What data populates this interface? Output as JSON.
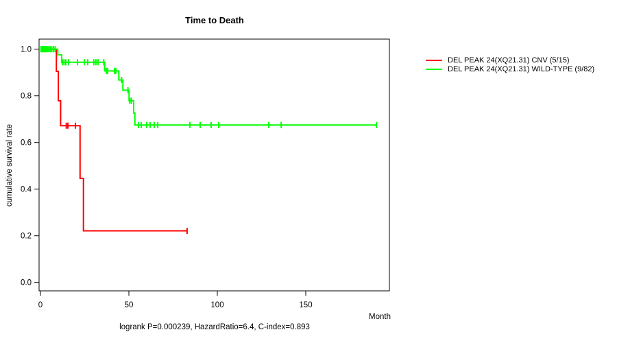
{
  "chart_data": {
    "type": "line",
    "subtype": "kaplan_meier_step",
    "title": "Time to Death",
    "xlabel": "Month",
    "ylabel": "cumulative survival rate",
    "annotation": "logrank P=0.000239, HazardRatio=6.4, C-index=0.893",
    "xlim": [
      0,
      197
    ],
    "ylim": [
      0.0,
      1.0
    ],
    "xticks": [
      0,
      50,
      100,
      150
    ],
    "yticks": [
      0.0,
      0.2,
      0.4,
      0.6,
      0.8,
      1.0
    ],
    "grid": false,
    "legend_position": "right-outside",
    "colors": {
      "cnv": "#ff0000",
      "wild_type": "#00ff00",
      "axis": "#000000"
    },
    "series": [
      {
        "name": "DEL PEAK 24(XQ21.31) CNV (5/15)",
        "color": "#ff0000",
        "start_survival": 1.0,
        "drops": [
          [
            9.0,
            0.905
          ],
          [
            10.1,
            0.779
          ],
          [
            11.4,
            0.672
          ],
          [
            22.4,
            0.446
          ],
          [
            24.3,
            0.221
          ]
        ],
        "end_time": 83,
        "censors": [
          [
            14.6,
            0.672
          ],
          [
            15.5,
            0.672
          ],
          [
            19.8,
            0.672
          ],
          [
            82.9,
            0.221
          ]
        ]
      },
      {
        "name": "DEL PEAK 24(XQ21.31) WILD-TYPE (9/82)",
        "color": "#00ff00",
        "start_survival": 1.0,
        "drops": [
          [
            9.8,
            0.976
          ],
          [
            12.0,
            0.944
          ],
          [
            36.3,
            0.907
          ],
          [
            44.3,
            0.868
          ],
          [
            46.6,
            0.824
          ],
          [
            50.1,
            0.779
          ],
          [
            52.7,
            0.726
          ],
          [
            53.4,
            0.675
          ]
        ],
        "end_time": 190,
        "censors": [
          [
            0.3,
            1.0
          ],
          [
            0.8,
            1.0
          ],
          [
            1.2,
            1.0
          ],
          [
            1.6,
            1.0
          ],
          [
            2.0,
            1.0
          ],
          [
            2.4,
            1.0
          ],
          [
            2.8,
            1.0
          ],
          [
            3.3,
            1.0
          ],
          [
            3.9,
            1.0
          ],
          [
            4.7,
            1.0
          ],
          [
            5.5,
            1.0
          ],
          [
            6.4,
            1.0
          ],
          [
            7.4,
            1.0
          ],
          [
            8.3,
            1.0
          ],
          [
            12.4,
            0.944
          ],
          [
            13.3,
            0.944
          ],
          [
            14.3,
            0.944
          ],
          [
            15.9,
            0.944
          ],
          [
            20.9,
            0.944
          ],
          [
            24.8,
            0.944
          ],
          [
            26.7,
            0.944
          ],
          [
            30.2,
            0.944
          ],
          [
            31.4,
            0.944
          ],
          [
            32.6,
            0.944
          ],
          [
            35.8,
            0.944
          ],
          [
            37.2,
            0.907
          ],
          [
            38.0,
            0.907
          ],
          [
            41.9,
            0.907
          ],
          [
            42.6,
            0.907
          ],
          [
            45.9,
            0.868
          ],
          [
            49.5,
            0.824
          ],
          [
            50.5,
            0.779
          ],
          [
            51.4,
            0.779
          ],
          [
            55.4,
            0.675
          ],
          [
            57.0,
            0.675
          ],
          [
            60.1,
            0.675
          ],
          [
            62.0,
            0.675
          ],
          [
            64.3,
            0.675
          ],
          [
            66.3,
            0.675
          ],
          [
            84.5,
            0.675
          ],
          [
            90.3,
            0.675
          ],
          [
            96.5,
            0.675
          ],
          [
            100.8,
            0.675
          ],
          [
            129.1,
            0.675
          ],
          [
            136.1,
            0.675
          ],
          [
            190.0,
            0.675
          ]
        ]
      }
    ]
  }
}
